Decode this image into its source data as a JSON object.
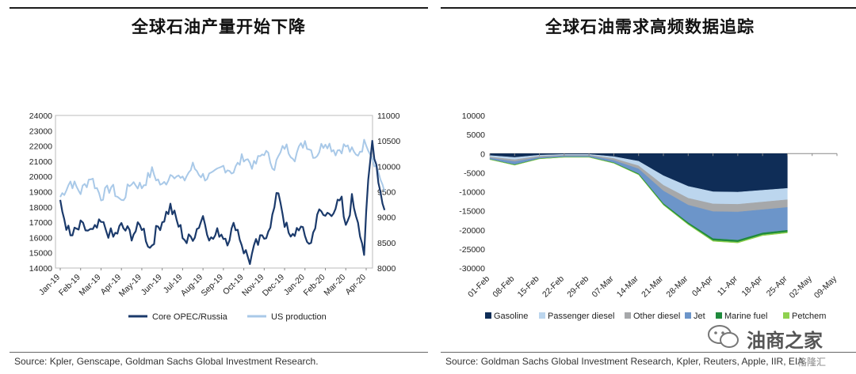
{
  "left": {
    "title": "全球石油产量开始下降",
    "source": "Source: Kpler, Genscape, Goldman Sachs Global Investment Research."
  },
  "right": {
    "title": "全球石油需求高频数据追踪",
    "source": "Source: Goldman Sachs Global Investment Research, Kpler, Reuters, Apple, IIR, EIA."
  },
  "watermark": {
    "text": "油商之家",
    "logo2": "格隆汇"
  },
  "chart_data": [
    {
      "type": "line",
      "x_labels": [
        "Jan-19",
        "Feb-19",
        "Mar-19",
        "Apr-19",
        "May-19",
        "Jun-19",
        "Jul-19",
        "Aug-19",
        "Sep-19",
        "Oct-19",
        "Nov-19",
        "Dec-19",
        "Jan-20",
        "Feb-20",
        "Mar-20",
        "Apr-20"
      ],
      "y_left": {
        "range": [
          14000,
          24000
        ],
        "ticks": [
          "14000",
          "15000",
          "16000",
          "17000",
          "18000",
          "19000",
          "20000",
          "21000",
          "22000",
          "23000",
          "24000"
        ]
      },
      "y_right": {
        "range": [
          8000,
          11000
        ],
        "ticks": [
          "8000",
          "8500",
          "9000",
          "9500",
          "10000",
          "10500",
          "11000"
        ]
      },
      "series": [
        {
          "name": "Core OPEC/Russia",
          "axis": "left",
          "color": "#1b3a6b",
          "anchors": [
            [
              0,
              18100
            ],
            [
              0.5,
              16000
            ],
            [
              1,
              16700
            ],
            [
              1.6,
              16300
            ],
            [
              2,
              16900
            ],
            [
              2.6,
              16000
            ],
            [
              3,
              16700
            ],
            [
              3.5,
              16200
            ],
            [
              4,
              16800
            ],
            [
              4.4,
              15300
            ],
            [
              4.8,
              16700
            ],
            [
              5,
              17100
            ],
            [
              5.4,
              18000
            ],
            [
              5.8,
              16800
            ],
            [
              6.2,
              15700
            ],
            [
              6.6,
              16300
            ],
            [
              7,
              17400
            ],
            [
              7.4,
              15800
            ],
            [
              7.8,
              16400
            ],
            [
              8.2,
              15900
            ],
            [
              8.6,
              16900
            ],
            [
              9,
              15200
            ],
            [
              9.3,
              14500
            ],
            [
              9.6,
              15500
            ],
            [
              10,
              16000
            ],
            [
              10.4,
              17300
            ],
            [
              10.7,
              19100
            ],
            [
              11,
              17000
            ],
            [
              11.3,
              15800
            ],
            [
              11.7,
              16800
            ],
            [
              12,
              16000
            ],
            [
              12.3,
              15600
            ],
            [
              12.6,
              17600
            ],
            [
              13,
              17400
            ],
            [
              13.4,
              17900
            ],
            [
              13.8,
              18300
            ],
            [
              14,
              16500
            ],
            [
              14.3,
              18500
            ],
            [
              14.6,
              17200
            ],
            [
              14.9,
              15000
            ],
            [
              15.1,
              19500
            ],
            [
              15.3,
              22300
            ],
            [
              15.5,
              20800
            ],
            [
              15.7,
              19000
            ],
            [
              15.9,
              17800
            ]
          ]
        },
        {
          "name": "US production",
          "axis": "right",
          "color": "#a9c9e8",
          "anchors": [
            [
              0,
              9400
            ],
            [
              0.5,
              9700
            ],
            [
              1,
              9500
            ],
            [
              1.5,
              9800
            ],
            [
              2,
              9400
            ],
            [
              2.5,
              9600
            ],
            [
              3,
              9300
            ],
            [
              3.5,
              9700
            ],
            [
              4,
              9600
            ],
            [
              4.5,
              9900
            ],
            [
              5,
              9600
            ],
            [
              5.5,
              9900
            ],
            [
              6,
              9700
            ],
            [
              6.5,
              10000
            ],
            [
              7,
              9800
            ],
            [
              7.5,
              9800
            ],
            [
              8,
              10000
            ],
            [
              8.5,
              9900
            ],
            [
              9,
              10200
            ],
            [
              9.5,
              10000
            ],
            [
              10,
              10300
            ],
            [
              10.5,
              10000
            ],
            [
              11,
              10400
            ],
            [
              11.5,
              10200
            ],
            [
              12,
              10500
            ],
            [
              12.5,
              10200
            ],
            [
              13,
              10500
            ],
            [
              13.5,
              10300
            ],
            [
              14,
              10400
            ],
            [
              14.5,
              10200
            ],
            [
              15,
              10500
            ],
            [
              15.3,
              10200
            ],
            [
              15.6,
              9900
            ],
            [
              15.9,
              9500
            ]
          ]
        }
      ],
      "legend": [
        "Core OPEC/Russia",
        "US production"
      ],
      "legend_position": "bottom"
    },
    {
      "type": "area",
      "categories": [
        "01-Feb",
        "08-Feb",
        "15-Feb",
        "22-Feb",
        "29-Feb",
        "07-Mar",
        "14-Mar",
        "21-Mar",
        "28-Mar",
        "04-Apr",
        "11-Apr",
        "18-Apr",
        "25-Apr",
        "02-May",
        "09-May"
      ],
      "y_range": [
        -30000,
        10000
      ],
      "y_ticks": [
        "-30000",
        "-25000",
        "-20000",
        "-15000",
        "-10000",
        "-5000",
        "0",
        "5000",
        "10000"
      ],
      "stacked": true,
      "series": [
        {
          "name": "Gasoline",
          "color": "#0f2d57",
          "values": [
            -500,
            -1000,
            -400,
            -200,
            -200,
            -800,
            -2000,
            -5800,
            -8600,
            -10000,
            -10100,
            -9600,
            -9100,
            null,
            null
          ]
        },
        {
          "name": "Passenger diesel",
          "color": "#bcd6ee",
          "values": [
            -400,
            -600,
            -300,
            -200,
            -200,
            -500,
            -1200,
            -2500,
            -3100,
            -3200,
            -3200,
            -3100,
            -3000,
            null,
            null
          ]
        },
        {
          "name": "Other diesel",
          "color": "#a6a8aa",
          "values": [
            -300,
            -500,
            -300,
            -200,
            -200,
            -500,
            -800,
            -1500,
            -1800,
            -2000,
            -2000,
            -2000,
            -2000,
            null,
            null
          ]
        },
        {
          "name": "Jet",
          "color": "#6c95c9",
          "values": [
            -300,
            -800,
            -300,
            -300,
            -300,
            -600,
            -1300,
            -3300,
            -4600,
            -7100,
            -7400,
            -6100,
            -6000,
            null,
            null
          ]
        },
        {
          "name": "Marine fuel",
          "color": "#1f8a3c",
          "values": [
            -50,
            -100,
            -50,
            -50,
            -50,
            -100,
            -200,
            -300,
            -400,
            -500,
            -500,
            -500,
            -500,
            null,
            null
          ]
        },
        {
          "name": "Petchem",
          "color": "#8fd14f",
          "values": [
            -20,
            -30,
            -20,
            -20,
            -20,
            -30,
            -60,
            -100,
            -150,
            -200,
            -200,
            -200,
            -200,
            null,
            null
          ]
        }
      ],
      "legend": [
        "Gasoline",
        "Passenger diesel",
        "Other diesel",
        "Jet",
        "Marine fuel",
        "Petchem"
      ],
      "legend_position": "bottom"
    }
  ]
}
